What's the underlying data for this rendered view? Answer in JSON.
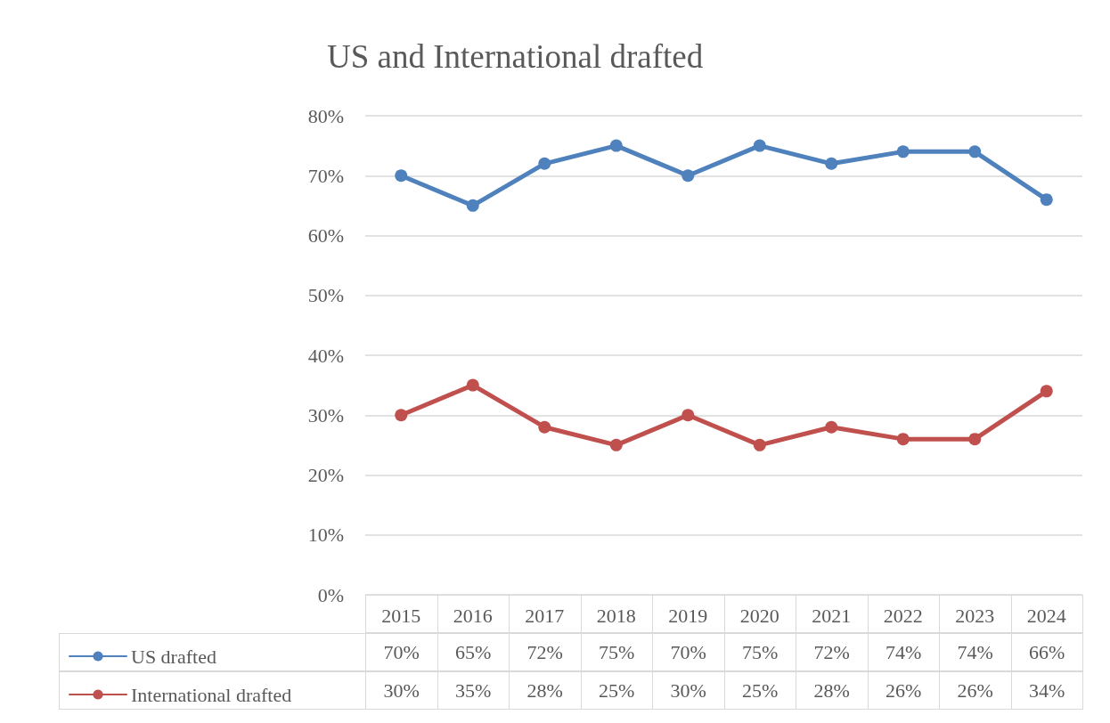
{
  "chart_data": {
    "type": "line",
    "title": "US and International drafted",
    "categories": [
      "2015",
      "2016",
      "2017",
      "2018",
      "2019",
      "2020",
      "2021",
      "2022",
      "2023",
      "2024"
    ],
    "series": [
      {
        "name": "US drafted",
        "color": "#4f81bd",
        "values": [
          70,
          65,
          72,
          75,
          70,
          75,
          72,
          74,
          74,
          66
        ],
        "value_labels": [
          "70%",
          "65%",
          "72%",
          "75%",
          "70%",
          "75%",
          "72%",
          "74%",
          "74%",
          "66%"
        ]
      },
      {
        "name": "International drafted",
        "color": "#c0504d",
        "values": [
          30,
          35,
          28,
          25,
          30,
          25,
          28,
          26,
          26,
          34
        ],
        "value_labels": [
          "30%",
          "35%",
          "28%",
          "25%",
          "30%",
          "25%",
          "28%",
          "26%",
          "26%",
          "34%"
        ]
      }
    ],
    "ylim": [
      0,
      80
    ],
    "yticks": [
      {
        "value": 0,
        "label": "0%"
      },
      {
        "value": 10,
        "label": "10%"
      },
      {
        "value": 20,
        "label": "20%"
      },
      {
        "value": 30,
        "label": "30%"
      },
      {
        "value": 40,
        "label": "40%"
      },
      {
        "value": 50,
        "label": "50%"
      },
      {
        "value": 60,
        "label": "60%"
      },
      {
        "value": 70,
        "label": "70%"
      },
      {
        "value": 80,
        "label": "80%"
      }
    ],
    "grid": "y",
    "legend": "bottom left",
    "marker": "circle",
    "line_style": "solid"
  }
}
